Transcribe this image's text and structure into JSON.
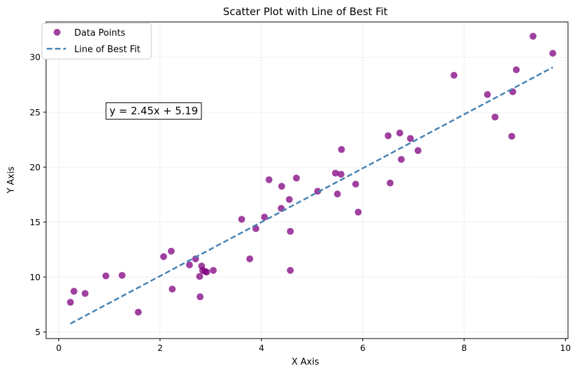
{
  "chart_data": {
    "type": "scatter",
    "title": "Scatter Plot with Line of Best Fit",
    "xlabel": "X Axis",
    "ylabel": "Y Axis",
    "xlim": [
      -0.25,
      10.05
    ],
    "ylim": [
      4.4,
      33.2
    ],
    "xticks": [
      0,
      2,
      4,
      6,
      8,
      10
    ],
    "yticks": [
      5,
      10,
      15,
      20,
      25,
      30
    ],
    "grid": true,
    "legend": "top-left",
    "annotation": "y = 2.45x + 5.19",
    "annotation_position": {
      "x": 1.0,
      "y": 25.1
    },
    "fit": {
      "slope": 2.45,
      "intercept": 5.19,
      "x_start": 0.23,
      "x_end": 9.75
    },
    "colors": {
      "points": "#800080",
      "line": "#4682b4",
      "grid": "#d0d0d0",
      "axis": "#000000"
    },
    "series": [
      {
        "name": "Data Points",
        "kind": "scatter",
        "points": [
          {
            "x": 0.23,
            "y": 7.7
          },
          {
            "x": 0.3,
            "y": 8.7
          },
          {
            "x": 0.52,
            "y": 8.5
          },
          {
            "x": 0.93,
            "y": 10.1
          },
          {
            "x": 1.25,
            "y": 10.15
          },
          {
            "x": 1.57,
            "y": 6.8
          },
          {
            "x": 2.07,
            "y": 11.85
          },
          {
            "x": 2.22,
            "y": 12.35
          },
          {
            "x": 2.24,
            "y": 8.9
          },
          {
            "x": 2.58,
            "y": 11.1
          },
          {
            "x": 2.7,
            "y": 11.65
          },
          {
            "x": 2.78,
            "y": 10.05
          },
          {
            "x": 2.79,
            "y": 8.2
          },
          {
            "x": 2.82,
            "y": 11.0
          },
          {
            "x": 2.84,
            "y": 10.6
          },
          {
            "x": 2.89,
            "y": 10.5
          },
          {
            "x": 2.92,
            "y": 10.45
          },
          {
            "x": 3.05,
            "y": 10.6
          },
          {
            "x": 3.61,
            "y": 15.25
          },
          {
            "x": 3.77,
            "y": 11.65
          },
          {
            "x": 3.89,
            "y": 14.4
          },
          {
            "x": 4.06,
            "y": 15.45
          },
          {
            "x": 4.15,
            "y": 18.85
          },
          {
            "x": 4.39,
            "y": 16.25
          },
          {
            "x": 4.4,
            "y": 18.25
          },
          {
            "x": 4.55,
            "y": 17.05
          },
          {
            "x": 4.57,
            "y": 14.15
          },
          {
            "x": 4.57,
            "y": 10.6
          },
          {
            "x": 4.69,
            "y": 19.0
          },
          {
            "x": 5.11,
            "y": 17.8
          },
          {
            "x": 5.46,
            "y": 19.45
          },
          {
            "x": 5.5,
            "y": 17.55
          },
          {
            "x": 5.57,
            "y": 19.35
          },
          {
            "x": 5.58,
            "y": 21.6
          },
          {
            "x": 5.86,
            "y": 18.45
          },
          {
            "x": 5.91,
            "y": 15.9
          },
          {
            "x": 6.5,
            "y": 22.85
          },
          {
            "x": 6.54,
            "y": 18.55
          },
          {
            "x": 6.73,
            "y": 23.1
          },
          {
            "x": 6.76,
            "y": 20.7
          },
          {
            "x": 6.94,
            "y": 22.6
          },
          {
            "x": 7.09,
            "y": 21.5
          },
          {
            "x": 7.8,
            "y": 28.35
          },
          {
            "x": 8.46,
            "y": 26.6
          },
          {
            "x": 8.61,
            "y": 24.55
          },
          {
            "x": 8.94,
            "y": 22.8
          },
          {
            "x": 8.96,
            "y": 26.85
          },
          {
            "x": 9.03,
            "y": 28.85
          },
          {
            "x": 9.36,
            "y": 31.9
          },
          {
            "x": 9.75,
            "y": 30.35
          }
        ]
      },
      {
        "name": "Line of Best Fit",
        "kind": "line"
      }
    ]
  }
}
